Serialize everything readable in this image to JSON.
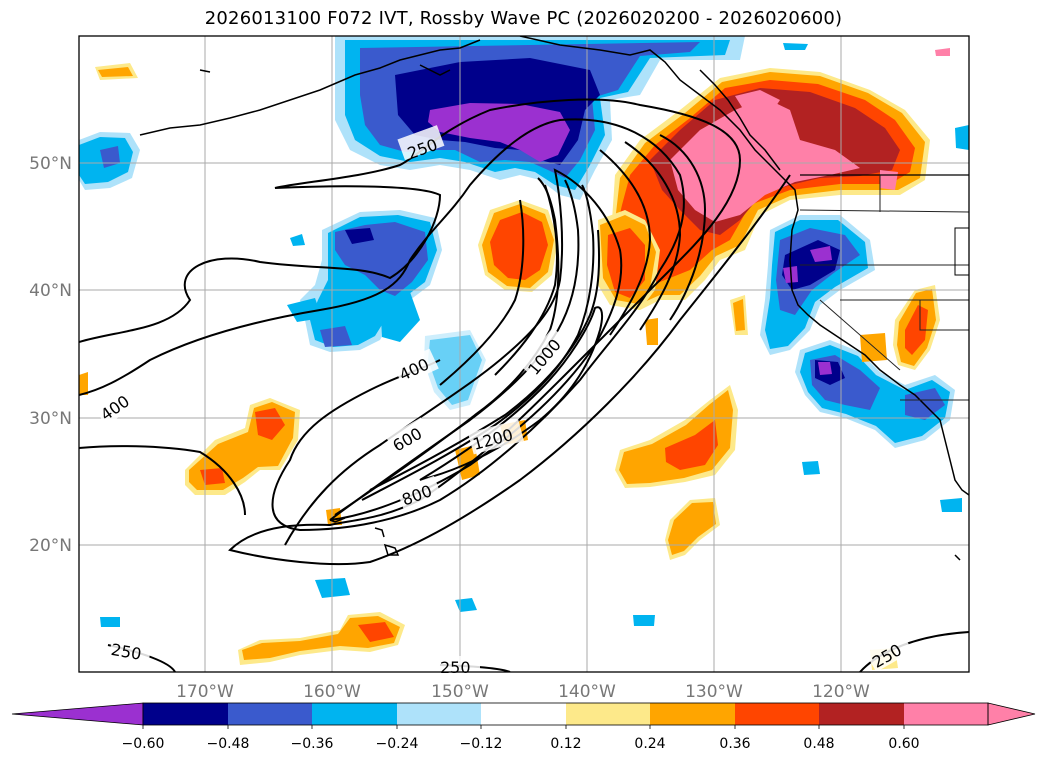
{
  "title": "2026013100 F072 IVT, Rossby Wave PC (2026020200 - 2026020600)",
  "lat_labels": [
    "50°N",
    "40°N",
    "30°N",
    "20°N"
  ],
  "lon_labels": [
    "170°W",
    "160°W",
    "150°W",
    "140°W",
    "130°W",
    "120°W"
  ],
  "map": {
    "lon_range": [
      -180,
      -110
    ],
    "lat_range": [
      10,
      60
    ],
    "gridlines": true,
    "coastlines": true,
    "state_borders": true
  },
  "contour_labels": [
    "250",
    "400",
    "400",
    "600",
    "800",
    "1000",
    "1200",
    "250",
    "250",
    "250"
  ],
  "colorbar": {
    "ticks": [
      "−0.60",
      "−0.48",
      "−0.36",
      "−0.24",
      "−0.12",
      "0.12",
      "0.24",
      "0.36",
      "0.48",
      "0.60"
    ],
    "colors": [
      "#9b30d0",
      "#00008b",
      "#3a5acd",
      "#00b4f0",
      "#aee2fa",
      "#ffffff",
      "#fde98a",
      "#ffa500",
      "#ff4500",
      "#b22222",
      "#ff80a8",
      "#ff80a8"
    ],
    "extend": "both"
  }
}
